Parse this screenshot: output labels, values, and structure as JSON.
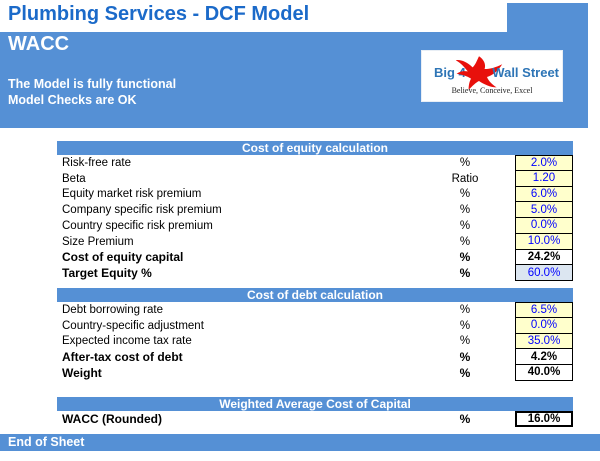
{
  "page": {
    "title": "Plumbing Services - DCF Model",
    "sheet_title": "WACC",
    "status_line1": "The Model is fully functional",
    "status_line2": "Model Checks are OK",
    "footer": "End of Sheet"
  },
  "logo": {
    "brand_left": "Big 4",
    "brand_right": "Wall Street",
    "tagline": "Believe, Conceive, Excel",
    "icon": "eagle-icon",
    "icon_color": "#e8100c",
    "brand_color": "#2e75b6"
  },
  "colors": {
    "banner_blue": "#5590d5",
    "title_blue": "#1b6ac9",
    "input_bg": "#ffffcc",
    "input_text": "#0000ff",
    "linked_bg": "#dce6f1",
    "result_text": "#000000"
  },
  "sections": [
    {
      "header": "Cost of equity calculation",
      "rows": [
        {
          "label": "Risk-free rate",
          "unit": "%",
          "value": "2.0%",
          "type": "input"
        },
        {
          "label": "Beta",
          "unit": "Ratio",
          "value": "1.20",
          "type": "input"
        },
        {
          "label": "Equity market risk premium",
          "unit": "%",
          "value": "6.0%",
          "type": "input"
        },
        {
          "label": "Company specific risk premium",
          "unit": "%",
          "value": "5.0%",
          "type": "input"
        },
        {
          "label": "Country specific risk premium",
          "unit": "%",
          "value": "0.0%",
          "type": "input"
        },
        {
          "label": "Size Premium",
          "unit": "%",
          "value": "10.0%",
          "type": "input"
        },
        {
          "label": "Cost of equity capital",
          "unit": "%",
          "value": "24.2%",
          "type": "result"
        },
        {
          "label": "Target Equity %",
          "unit": "%",
          "value": "60.0%",
          "type": "linked"
        }
      ]
    },
    {
      "header": "Cost of debt calculation",
      "rows": [
        {
          "label": "Debt borrowing rate",
          "unit": "%",
          "value": "6.5%",
          "type": "input"
        },
        {
          "label": "Country-specific adjustment",
          "unit": "%",
          "value": "0.0%",
          "type": "input"
        },
        {
          "label": "Expected income tax rate",
          "unit": "%",
          "value": "35.0%",
          "type": "input"
        },
        {
          "label": "After-tax cost of debt",
          "unit": "%",
          "value": "4.2%",
          "type": "result"
        },
        {
          "label": "Weight",
          "unit": "%",
          "value": "40.0%",
          "type": "result"
        }
      ]
    },
    {
      "header": "Weighted Average Cost of Capital",
      "rows": [
        {
          "label": "WACC (Rounded)",
          "unit": "%",
          "value": "16.0%",
          "type": "final"
        }
      ]
    }
  ]
}
